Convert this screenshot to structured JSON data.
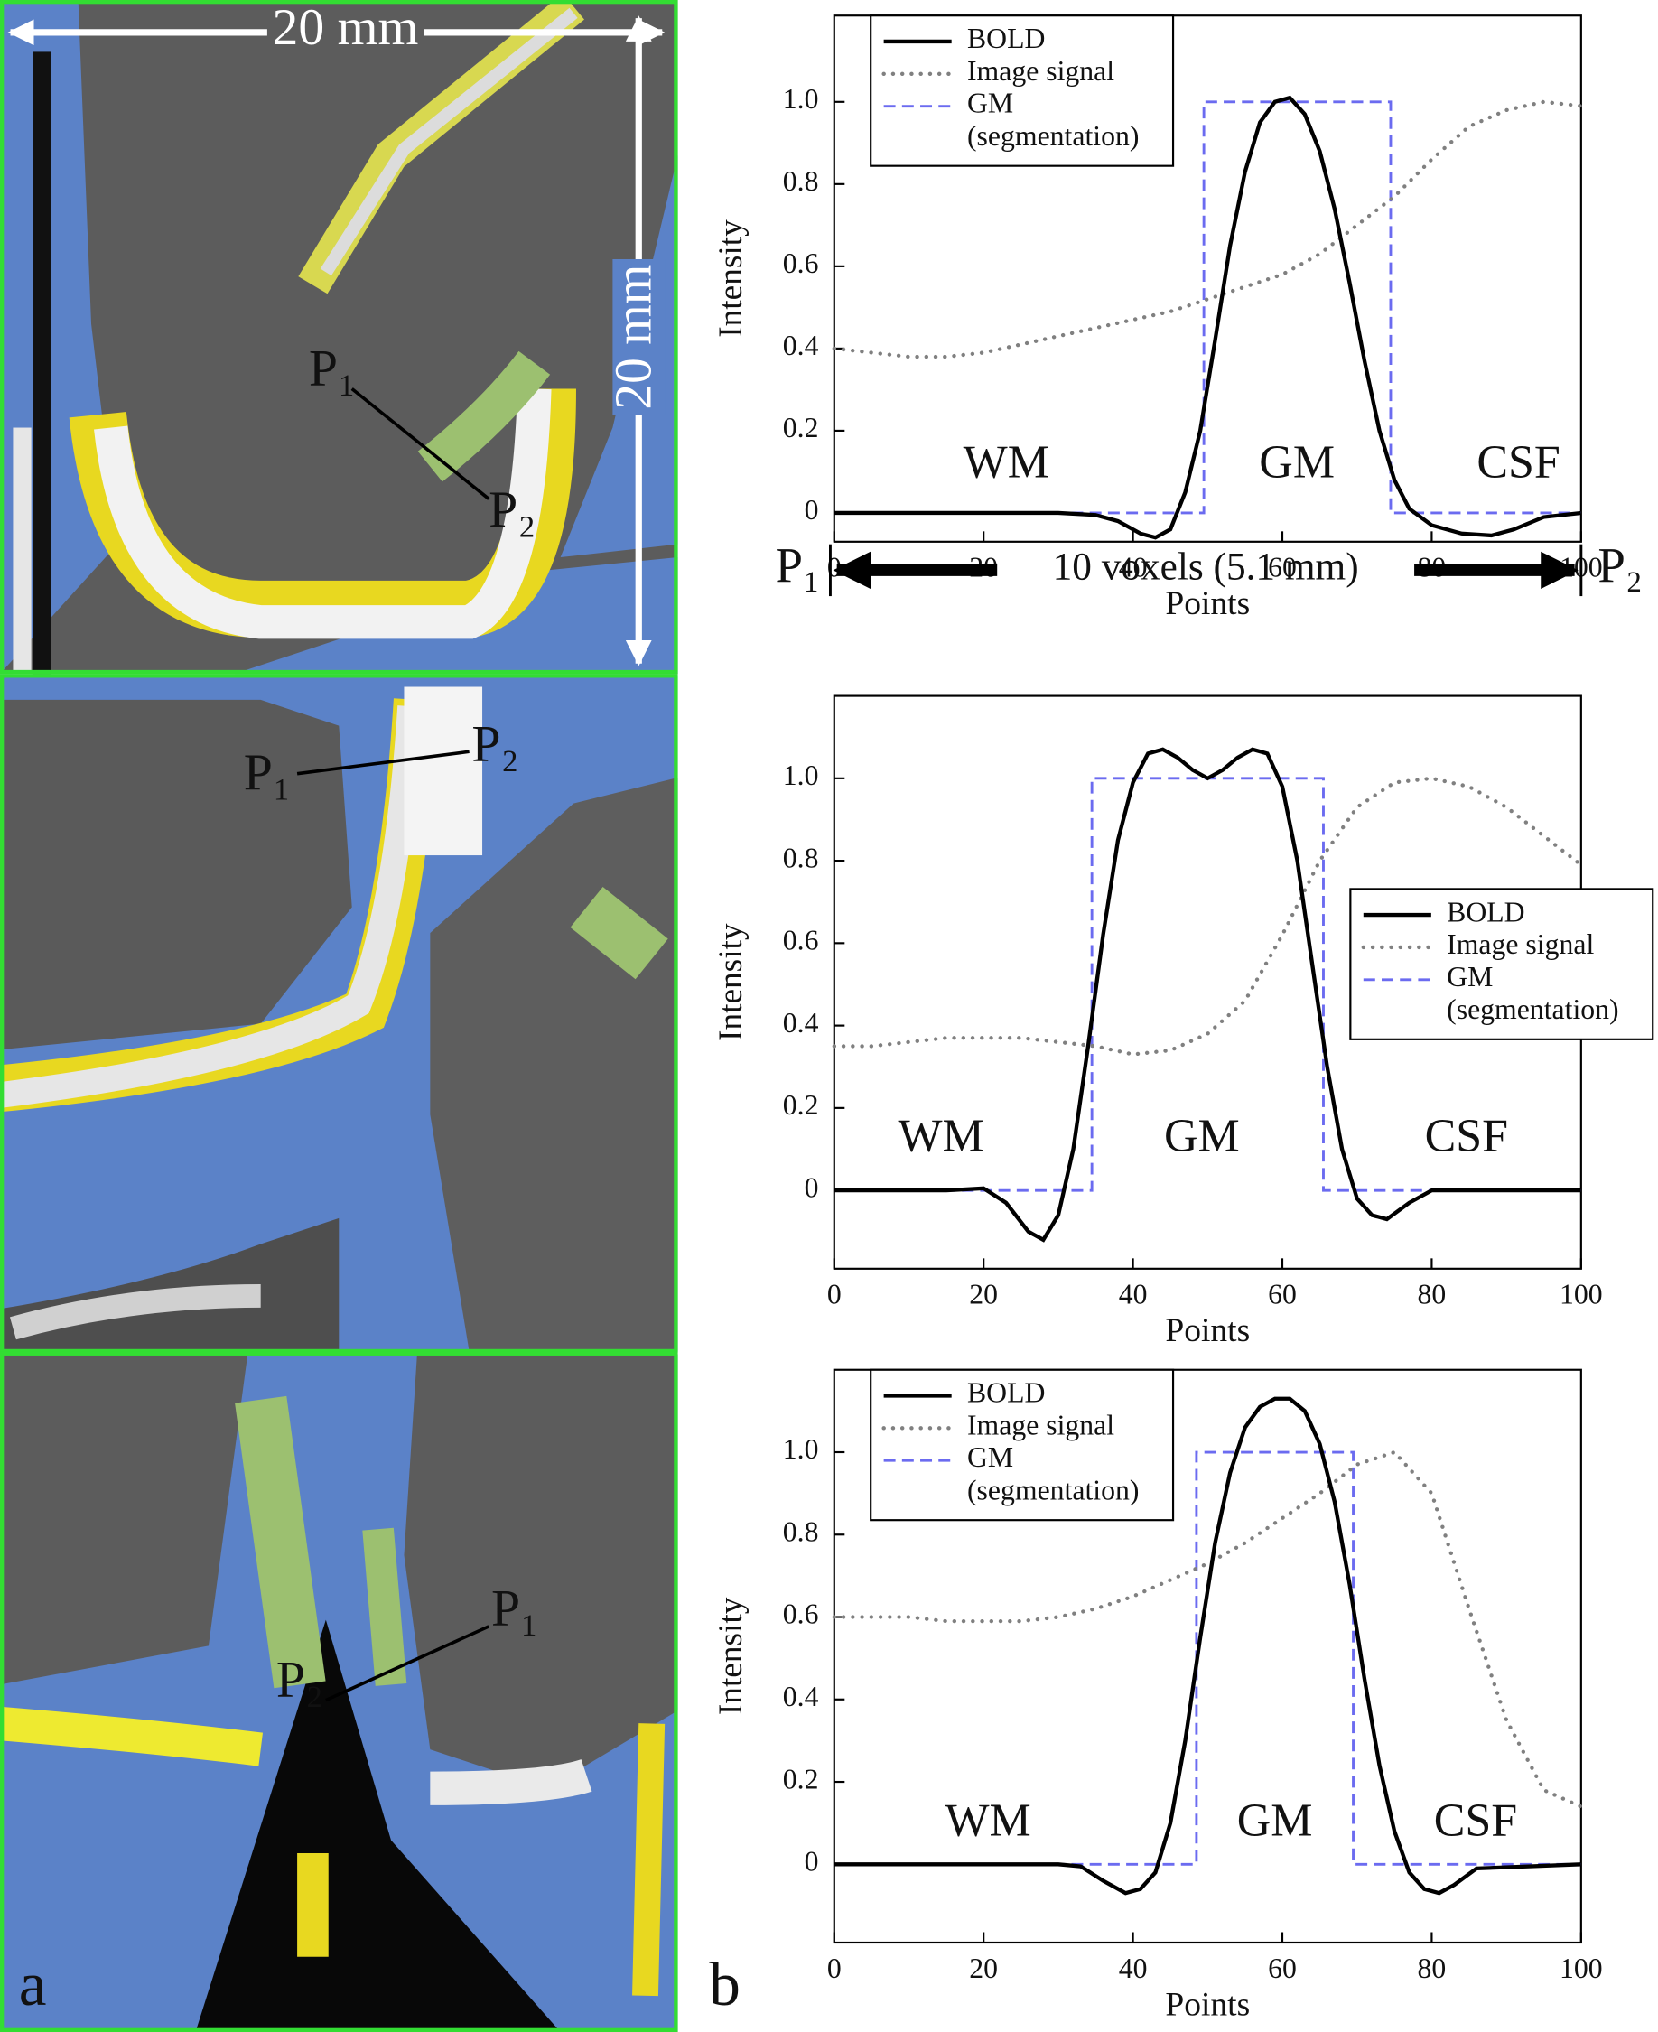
{
  "panel_labels": [
    "a",
    "b"
  ],
  "images": [
    {
      "labels": [
        "20 mm",
        "20 mm",
        "P₁",
        "P₂"
      ]
    },
    {
      "labels": [
        "P₁",
        "P₂"
      ]
    },
    {
      "labels": [
        "P₁",
        "P₂"
      ]
    }
  ],
  "chart_data": [
    {
      "type": "line",
      "xlabel": "Points",
      "ylabel": "Intensity",
      "xlim": [
        0,
        100
      ],
      "xticks": [
        0,
        20,
        40,
        60,
        80,
        100
      ],
      "ylim": [
        -0.07,
        1.21
      ],
      "yticks": [
        0,
        0.2,
        0.4,
        0.6,
        0.8,
        {
          "value": 1,
          "label": "1.0"
        }
      ],
      "legend": "upper left",
      "series": [
        {
          "name": "BOLD",
          "color": "#000000",
          "style": "solid",
          "x": [
            0,
            30,
            35,
            38,
            41,
            43,
            45,
            47,
            49,
            51,
            53,
            55,
            57,
            59,
            61,
            63,
            65,
            67,
            69,
            71,
            73,
            75,
            77,
            80,
            84,
            88,
            91,
            95,
            100
          ],
          "values": [
            0,
            0,
            -0.005,
            -0.02,
            -0.05,
            -0.06,
            -0.04,
            0.05,
            0.2,
            0.42,
            0.65,
            0.83,
            0.95,
            1.0,
            1.01,
            0.97,
            0.88,
            0.74,
            0.56,
            0.37,
            0.2,
            0.08,
            0.01,
            -0.03,
            -0.05,
            -0.055,
            -0.04,
            -0.01,
            0
          ]
        },
        {
          "name": "Image signal",
          "color": "#808080",
          "style": "dotted",
          "x": [
            0,
            5,
            10,
            15,
            20,
            25,
            30,
            35,
            40,
            45,
            50,
            55,
            60,
            65,
            70,
            75,
            80,
            85,
            90,
            95,
            100
          ],
          "values": [
            0.4,
            0.39,
            0.38,
            0.38,
            0.39,
            0.41,
            0.43,
            0.45,
            0.47,
            0.49,
            0.52,
            0.55,
            0.58,
            0.63,
            0.7,
            0.77,
            0.86,
            0.94,
            0.98,
            1.0,
            0.99
          ]
        },
        {
          "name": "GM\n(segmentation)",
          "color": "#6b6bf0",
          "style": "dashed",
          "x": [
            0,
            49.5,
            49.5,
            74.5,
            74.5,
            100
          ],
          "values": [
            0,
            0,
            1,
            1,
            0,
            0
          ]
        }
      ],
      "annotations": [
        {
          "text": "WM"
        },
        {
          "text": "GM",
          "color": "#5a5aee"
        },
        {
          "text": "CSF"
        },
        {
          "text": "P₁"
        },
        {
          "text": "10 voxels (5.1 mm)"
        },
        {
          "text": "P₂"
        }
      ]
    },
    {
      "type": "line",
      "xlabel": "Points",
      "ylabel": "Intensity",
      "xlim": [
        0,
        100
      ],
      "xticks": [
        0,
        20,
        40,
        60,
        80,
        100
      ],
      "ylim": [
        -0.19,
        1.2
      ],
      "yticks": [
        0,
        0.2,
        0.4,
        0.6,
        0.8,
        {
          "value": 1,
          "label": "1.0"
        }
      ],
      "legend": "center right",
      "series": [
        {
          "name": "BOLD",
          "color": "#000000",
          "style": "solid",
          "x": [
            0,
            15,
            20,
            23,
            26,
            28,
            30,
            32,
            34,
            36,
            38,
            40,
            42,
            44,
            46,
            48,
            50,
            52,
            54,
            56,
            58,
            60,
            62,
            64,
            66,
            68,
            70,
            72,
            74,
            77,
            80,
            100
          ],
          "values": [
            0,
            0,
            0.005,
            -0.03,
            -0.1,
            -0.12,
            -0.06,
            0.1,
            0.35,
            0.62,
            0.85,
            0.99,
            1.06,
            1.07,
            1.05,
            1.02,
            1.0,
            1.02,
            1.05,
            1.07,
            1.06,
            0.98,
            0.8,
            0.55,
            0.3,
            0.1,
            -0.02,
            -0.06,
            -0.07,
            -0.03,
            0,
            0
          ]
        },
        {
          "name": "Image signal",
          "color": "#808080",
          "style": "dotted",
          "x": [
            0,
            5,
            10,
            15,
            20,
            25,
            30,
            35,
            40,
            45,
            50,
            55,
            60,
            65,
            70,
            75,
            80,
            85,
            90,
            95,
            100
          ],
          "values": [
            0.35,
            0.35,
            0.36,
            0.37,
            0.37,
            0.37,
            0.36,
            0.35,
            0.33,
            0.34,
            0.38,
            0.46,
            0.62,
            0.8,
            0.93,
            0.99,
            1.0,
            0.98,
            0.93,
            0.86,
            0.79
          ]
        },
        {
          "name": "GM\n(segmentation)",
          "color": "#6b6bf0",
          "style": "dashed",
          "x": [
            0,
            34.5,
            34.5,
            65.5,
            65.5,
            100
          ],
          "values": [
            0,
            0,
            1,
            1,
            0,
            0
          ]
        }
      ],
      "annotations": [
        {
          "text": "WM"
        },
        {
          "text": "GM",
          "color": "#5a5aee"
        },
        {
          "text": "CSF"
        }
      ]
    },
    {
      "type": "line",
      "xlabel": "Points",
      "ylabel": "Intensity",
      "xlim": [
        0,
        100
      ],
      "xticks": [
        0,
        20,
        40,
        60,
        80,
        100
      ],
      "ylim": [
        -0.19,
        1.2
      ],
      "yticks": [
        0,
        0.2,
        0.4,
        0.6,
        0.8,
        {
          "value": 1,
          "label": "1.0"
        }
      ],
      "legend": "upper left",
      "series": [
        {
          "name": "BOLD",
          "color": "#000000",
          "style": "solid",
          "x": [
            0,
            30,
            33,
            36,
            39,
            41,
            43,
            45,
            47,
            49,
            51,
            53,
            55,
            57,
            59,
            61,
            63,
            65,
            67,
            69,
            71,
            73,
            75,
            77,
            79,
            81,
            83,
            86,
            100
          ],
          "values": [
            0,
            0,
            -0.005,
            -0.04,
            -0.07,
            -0.06,
            -0.02,
            0.1,
            0.3,
            0.55,
            0.78,
            0.95,
            1.06,
            1.11,
            1.13,
            1.13,
            1.1,
            1.02,
            0.88,
            0.68,
            0.45,
            0.24,
            0.08,
            -0.02,
            -0.06,
            -0.07,
            -0.05,
            -0.01,
            0
          ]
        },
        {
          "name": "Image signal",
          "color": "#808080",
          "style": "dotted",
          "x": [
            0,
            5,
            10,
            15,
            20,
            25,
            30,
            35,
            40,
            45,
            50,
            55,
            60,
            65,
            70,
            75,
            80,
            85,
            90,
            95,
            100
          ],
          "values": [
            0.6,
            0.6,
            0.6,
            0.59,
            0.59,
            0.59,
            0.6,
            0.62,
            0.65,
            0.69,
            0.73,
            0.78,
            0.84,
            0.9,
            0.97,
            1.0,
            0.9,
            0.62,
            0.35,
            0.18,
            0.14
          ]
        },
        {
          "name": "GM\n(segmentation)",
          "color": "#6b6bf0",
          "style": "dashed",
          "x": [
            0,
            48.5,
            48.5,
            69.5,
            69.5,
            100
          ],
          "values": [
            0,
            0,
            1,
            1,
            0,
            0
          ]
        }
      ],
      "annotations": [
        {
          "text": "WM"
        },
        {
          "text": "GM",
          "color": "#5a5aee"
        },
        {
          "text": "CSF"
        }
      ]
    }
  ]
}
